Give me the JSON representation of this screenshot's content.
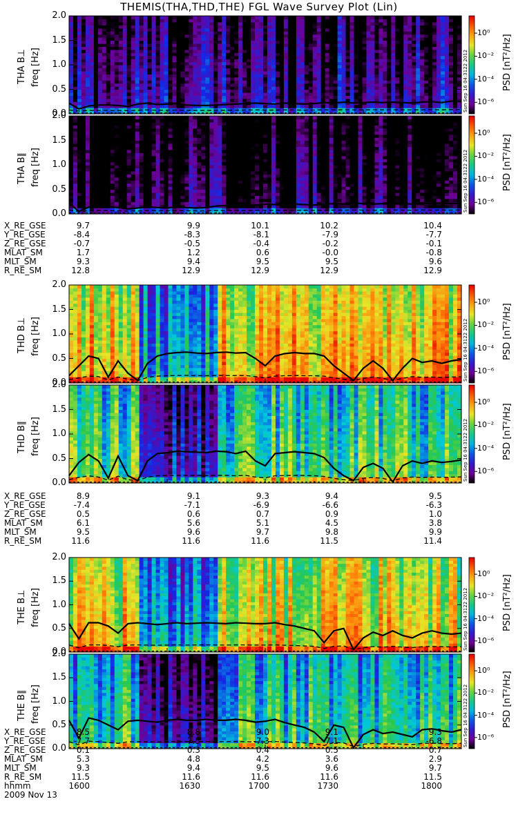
{
  "chart_data": {
    "type": "heatmap",
    "title": "THEMIS(THA,THD,THE) FGL Wave Survey Plot (Lin)",
    "colorbar_label": "PSD [nT²/Hz]",
    "colorbar_ticks": [
      "10⁰",
      "10⁻²",
      "10⁻⁴",
      "10⁻⁶"
    ],
    "colorbar_exponents": [
      0,
      -2,
      -4,
      -6
    ],
    "y_ticks": [
      "0.0",
      "0.5",
      "1.0",
      "1.5",
      "2.0"
    ],
    "ylim": [
      0,
      2.0
    ],
    "xlim": [
      1600,
      1800
    ],
    "stamp": "Sun Sep 16 04:3122 2012",
    "panels": [
      {
        "label": "THA B⊥",
        "freq_label": "freq [Hz]",
        "level": 0.15,
        "group": 0,
        "line": [
          0.22,
          0.1,
          0.16,
          0.18,
          0.18,
          0.17,
          0.15,
          0.2,
          0.22,
          0.19,
          0.2,
          0.21,
          0.18,
          0.17,
          0.17,
          0.18,
          0.19,
          0.2,
          0.21,
          0.22,
          0.21,
          0.2,
          0.22,
          0.21,
          0.2,
          0.21,
          0.23,
          0.22,
          0.24,
          0.22,
          0.23,
          0.24,
          0.23,
          0.24,
          0.23,
          0.22,
          0.24,
          0.25,
          0.23,
          0.26,
          0.25
        ]
      },
      {
        "label": "THA B∥",
        "freq_label": "freq [Hz]",
        "level": 0.05,
        "group": 0,
        "line": [
          0.22,
          0.05,
          0.14,
          0.19,
          0.15,
          0.13,
          0.1,
          0.12,
          0.15,
          0.13,
          0.12,
          0.15,
          0.13,
          0.12,
          0.13,
          0.16,
          0.17,
          0.16,
          0.17,
          0.18,
          0.2,
          0.19,
          0.18,
          0.2,
          0.19,
          0.18,
          0.2,
          0.21,
          0.2,
          0.22,
          0.21,
          0.2,
          0.21,
          0.22,
          0.21,
          0.2,
          0.22,
          0.21,
          0.22,
          0.21,
          0.22
        ]
      },
      {
        "label": "THD B⊥",
        "freq_label": "freq [Hz]",
        "level": 0.8,
        "group": 1,
        "line": [
          0.15,
          0.35,
          0.55,
          0.5,
          0.12,
          0.45,
          0.2,
          0.05,
          0.4,
          0.55,
          0.6,
          0.62,
          0.63,
          0.61,
          0.6,
          0.62,
          0.63,
          0.61,
          0.62,
          0.5,
          0.35,
          0.55,
          0.6,
          0.62,
          0.6,
          0.6,
          0.55,
          0.35,
          0.2,
          0.05,
          0.3,
          0.45,
          0.3,
          0.05,
          0.3,
          0.5,
          0.42,
          0.45,
          0.4,
          0.45,
          0.48
        ]
      },
      {
        "label": "THD B∥",
        "freq_label": "freq [Hz]",
        "level": 0.55,
        "group": 1,
        "line": [
          0.15,
          0.42,
          0.58,
          0.45,
          0.1,
          0.55,
          0.15,
          0.05,
          0.45,
          0.6,
          0.62,
          0.65,
          0.64,
          0.63,
          0.62,
          0.65,
          0.64,
          0.6,
          0.65,
          0.45,
          0.35,
          0.6,
          0.62,
          0.64,
          0.62,
          0.6,
          0.52,
          0.3,
          0.15,
          0.05,
          0.32,
          0.4,
          0.3,
          0.02,
          0.35,
          0.45,
          0.4,
          0.45,
          0.42,
          0.44,
          0.47
        ]
      },
      {
        "label": "THE B⊥",
        "freq_label": "freq [Hz]",
        "level": 0.75,
        "group": 2,
        "line": [
          0.6,
          0.28,
          0.62,
          0.62,
          0.55,
          0.4,
          0.6,
          0.62,
          0.6,
          0.58,
          0.6,
          0.62,
          0.6,
          0.61,
          0.62,
          0.61,
          0.6,
          0.62,
          0.61,
          0.6,
          0.6,
          0.62,
          0.58,
          0.55,
          0.5,
          0.45,
          0.2,
          0.45,
          0.5,
          0.05,
          0.3,
          0.42,
          0.35,
          0.45,
          0.35,
          0.3,
          0.4,
          0.45,
          0.4,
          0.38,
          0.4
        ]
      },
      {
        "label": "THE B∥",
        "freq_label": "freq [Hz]",
        "level": 0.5,
        "group": 2,
        "line": [
          0.6,
          0.22,
          0.65,
          0.6,
          0.5,
          0.4,
          0.58,
          0.6,
          0.58,
          0.56,
          0.6,
          0.62,
          0.6,
          0.6,
          0.62,
          0.6,
          0.6,
          0.62,
          0.6,
          0.56,
          0.58,
          0.62,
          0.55,
          0.5,
          0.45,
          0.35,
          0.15,
          0.5,
          0.45,
          0.02,
          0.3,
          0.4,
          0.32,
          0.35,
          0.3,
          0.25,
          0.4,
          0.42,
          0.38,
          0.35,
          0.4
        ]
      }
    ],
    "ephemeris": [
      {
        "labels": [
          "X_RE_GSE",
          "Y_RE_GSE",
          "Z_RE_GSE",
          "MLAT_SM",
          "MLT_SM",
          "R_RE_SM"
        ],
        "cols": [
          [
            "9.7",
            "-8.4",
            "-0.7",
            "1.7",
            "9.3",
            "12.8"
          ],
          [
            "9.9",
            "-8.3",
            "-0.5",
            "1.2",
            "9.4",
            "12.9"
          ],
          [
            "10.1",
            "-8.1",
            "-0.4",
            "0.6",
            "9.5",
            "12.9"
          ],
          [
            "10.2",
            "-7.9",
            "-0.2",
            "-0.0",
            "9.5",
            "12.9"
          ],
          [
            "10.4",
            "-7.7",
            "-0.1",
            "-0.8",
            "9.6",
            "12.9"
          ]
        ]
      },
      {
        "labels": [
          "X_RE_GSE",
          "Y_RE_GSE",
          "Z_RE_GSE",
          "MLAT_SM",
          "MLT_SM",
          "R_RE_SM"
        ],
        "cols": [
          [
            "8.9",
            "-7.4",
            "0.5",
            "6.1",
            "9.5",
            "11.6"
          ],
          [
            "9.1",
            "-7.1",
            "0.6",
            "5.6",
            "9.6",
            "11.6"
          ],
          [
            "9.3",
            "-6.9",
            "0.7",
            "5.1",
            "9.7",
            "11.6"
          ],
          [
            "9.4",
            "-6.6",
            "0.9",
            "4.5",
            "9.8",
            "11.5"
          ],
          [
            "9.5",
            "-6.3",
            "1.0",
            "3.8",
            "9.9",
            "11.4"
          ]
        ]
      },
      {
        "labels": [
          "X_RE_GSE",
          "Y_RE_GSE",
          "Z_RE_GSE",
          "MLAT_SM",
          "MLT_SM",
          "R_RE_SM",
          "hhmm",
          "2009 Nov 13"
        ],
        "cols": [
          [
            "8.5",
            "-7.7",
            "0.1",
            "5.3",
            "9.3",
            "11.5",
            "1600",
            ""
          ],
          [
            "8.8",
            "-7.5",
            "0.3",
            "4.8",
            "9.4",
            "11.6",
            "1630",
            ""
          ],
          [
            "9.0",
            "-7.3",
            "0.4",
            "4.2",
            "9.5",
            "11.6",
            "1700",
            ""
          ],
          [
            "9.1",
            "-7.1",
            "0.5",
            "3.6",
            "9.6",
            "11.6",
            "1730",
            ""
          ],
          [
            "9.3",
            "-6.8",
            "0.7",
            "2.9",
            "9.7",
            "11.5",
            "1800",
            ""
          ]
        ]
      }
    ]
  }
}
